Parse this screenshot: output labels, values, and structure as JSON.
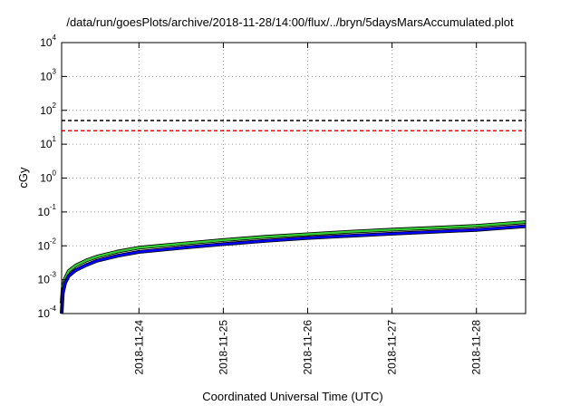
{
  "chart_data": {
    "type": "line",
    "title": "/data/run/goesPlots/archive/2018-11-28/14:00/flux/../bryn/5daysMarsAccumulated.plot",
    "xlabel": "Coordinated Universal Time (UTC)",
    "ylabel": "cGy",
    "yscale": "log",
    "ylim": [
      0.0001,
      10000
    ],
    "xlim": [
      "2018-11-23 02:00",
      "2018-11-28 14:00"
    ],
    "grid": true,
    "y_ticks": [
      {
        "base": "10",
        "exp": "-4",
        "value": 0.0001
      },
      {
        "base": "10",
        "exp": "-3",
        "value": 0.001
      },
      {
        "base": "10",
        "exp": "-2",
        "value": 0.01
      },
      {
        "base": "10",
        "exp": "-1",
        "value": 0.1
      },
      {
        "base": "10",
        "exp": "0",
        "value": 1
      },
      {
        "base": "10",
        "exp": "1",
        "value": 10
      },
      {
        "base": "10",
        "exp": "2",
        "value": 100
      },
      {
        "base": "10",
        "exp": "3",
        "value": 1000
      },
      {
        "base": "10",
        "exp": "4",
        "value": 10000
      }
    ],
    "x_ticks": [
      {
        "label": "2018-11-24",
        "date": "2018-11-24 00:00"
      },
      {
        "label": "2018-11-25",
        "date": "2018-11-25 00:00"
      },
      {
        "label": "2018-11-26",
        "date": "2018-11-26 00:00"
      },
      {
        "label": "2018-11-27",
        "date": "2018-11-27 00:00"
      },
      {
        "label": "2018-11-28",
        "date": "2018-11-28 00:00"
      }
    ],
    "hlines": [
      {
        "value": 50,
        "color": "#000000",
        "style": "dashed"
      },
      {
        "value": 25,
        "color": "#ff0000",
        "style": "dashed"
      }
    ],
    "series": [
      {
        "color": "#33cc33",
        "x": [
          "2018-11-23 02:00",
          "2018-11-23 02:20",
          "2018-11-23 03:00",
          "2018-11-23 04:00",
          "2018-11-23 06:00",
          "2018-11-23 09:00",
          "2018-11-23 12:00",
          "2018-11-23 18:00",
          "2018-11-24 00:00",
          "2018-11-24 12:00",
          "2018-11-25 00:00",
          "2018-11-25 12:00",
          "2018-11-26 00:00",
          "2018-11-26 12:00",
          "2018-11-27 00:00",
          "2018-11-27 12:00",
          "2018-11-28 00:00",
          "2018-11-28 14:00"
        ],
        "y": [
          0.0002,
          0.0006,
          0.0011,
          0.0018,
          0.0026,
          0.0037,
          0.0048,
          0.0068,
          0.0088,
          0.0115,
          0.0148,
          0.0185,
          0.022,
          0.026,
          0.03,
          0.034,
          0.039,
          0.05
        ]
      },
      {
        "color": "#0000ff",
        "x": [
          "2018-11-23 02:00",
          "2018-11-23 02:20",
          "2018-11-23 03:00",
          "2018-11-23 04:00",
          "2018-11-23 06:00",
          "2018-11-23 09:00",
          "2018-11-23 12:00",
          "2018-11-23 18:00",
          "2018-11-24 00:00",
          "2018-11-24 12:00",
          "2018-11-25 00:00",
          "2018-11-25 12:00",
          "2018-11-26 00:00",
          "2018-11-26 12:00",
          "2018-11-27 00:00",
          "2018-11-27 12:00",
          "2018-11-28 00:00",
          "2018-11-28 14:00"
        ],
        "y": [
          0.0001,
          0.0004,
          0.0008,
          0.0013,
          0.0019,
          0.0027,
          0.0036,
          0.0051,
          0.0066,
          0.0087,
          0.0112,
          0.014,
          0.017,
          0.0198,
          0.0228,
          0.026,
          0.0295,
          0.038
        ]
      }
    ]
  }
}
